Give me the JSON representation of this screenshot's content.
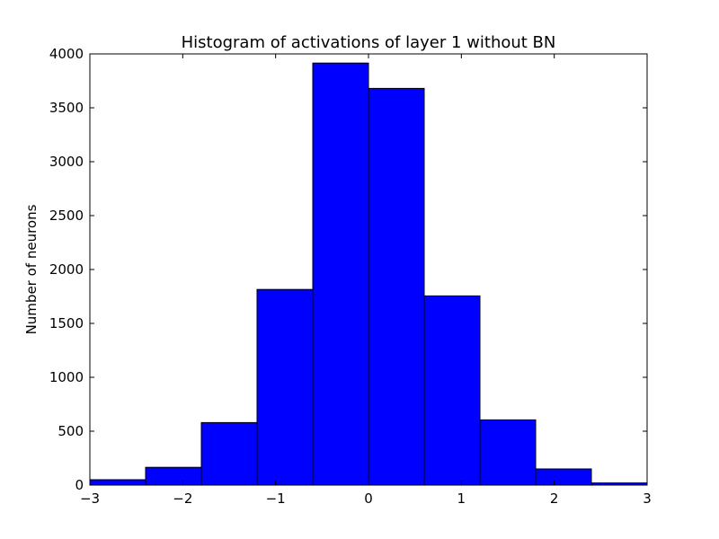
{
  "chart_data": {
    "type": "bar",
    "title": "Histogram of activations of layer 1  without BN",
    "xlabel": "",
    "ylabel": "Number of neurons",
    "xlim": [
      -3,
      3
    ],
    "ylim": [
      0,
      4000
    ],
    "grid": false,
    "bar_color": "#0000ff",
    "edge_color": "#000000",
    "bins": [
      {
        "x0": -3.0,
        "x1": -2.4,
        "value": 50
      },
      {
        "x0": -2.4,
        "x1": -1.8,
        "value": 165
      },
      {
        "x0": -1.8,
        "x1": -1.2,
        "value": 580
      },
      {
        "x0": -1.2,
        "x1": -0.6,
        "value": 1815
      },
      {
        "x0": -0.6,
        "x1": 0.0,
        "value": 3915
      },
      {
        "x0": 0.0,
        "x1": 0.6,
        "value": 3680
      },
      {
        "x0": 0.6,
        "x1": 1.2,
        "value": 1755
      },
      {
        "x0": 1.2,
        "x1": 1.8,
        "value": 605
      },
      {
        "x0": 1.8,
        "x1": 2.4,
        "value": 150
      },
      {
        "x0": 2.4,
        "x1": 3.0,
        "value": 20
      }
    ],
    "x_ticks": [
      {
        "value": -3,
        "label": "−3"
      },
      {
        "value": -2,
        "label": "−2"
      },
      {
        "value": -1,
        "label": "−1"
      },
      {
        "value": 0,
        "label": "0"
      },
      {
        "value": 1,
        "label": "1"
      },
      {
        "value": 2,
        "label": "2"
      },
      {
        "value": 3,
        "label": "3"
      }
    ],
    "y_ticks": [
      {
        "value": 0,
        "label": "0"
      },
      {
        "value": 500,
        "label": "500"
      },
      {
        "value": 1000,
        "label": "1000"
      },
      {
        "value": 1500,
        "label": "1500"
      },
      {
        "value": 2000,
        "label": "2000"
      },
      {
        "value": 2500,
        "label": "2500"
      },
      {
        "value": 3000,
        "label": "3000"
      },
      {
        "value": 3500,
        "label": "3500"
      },
      {
        "value": 4000,
        "label": "4000"
      }
    ]
  }
}
